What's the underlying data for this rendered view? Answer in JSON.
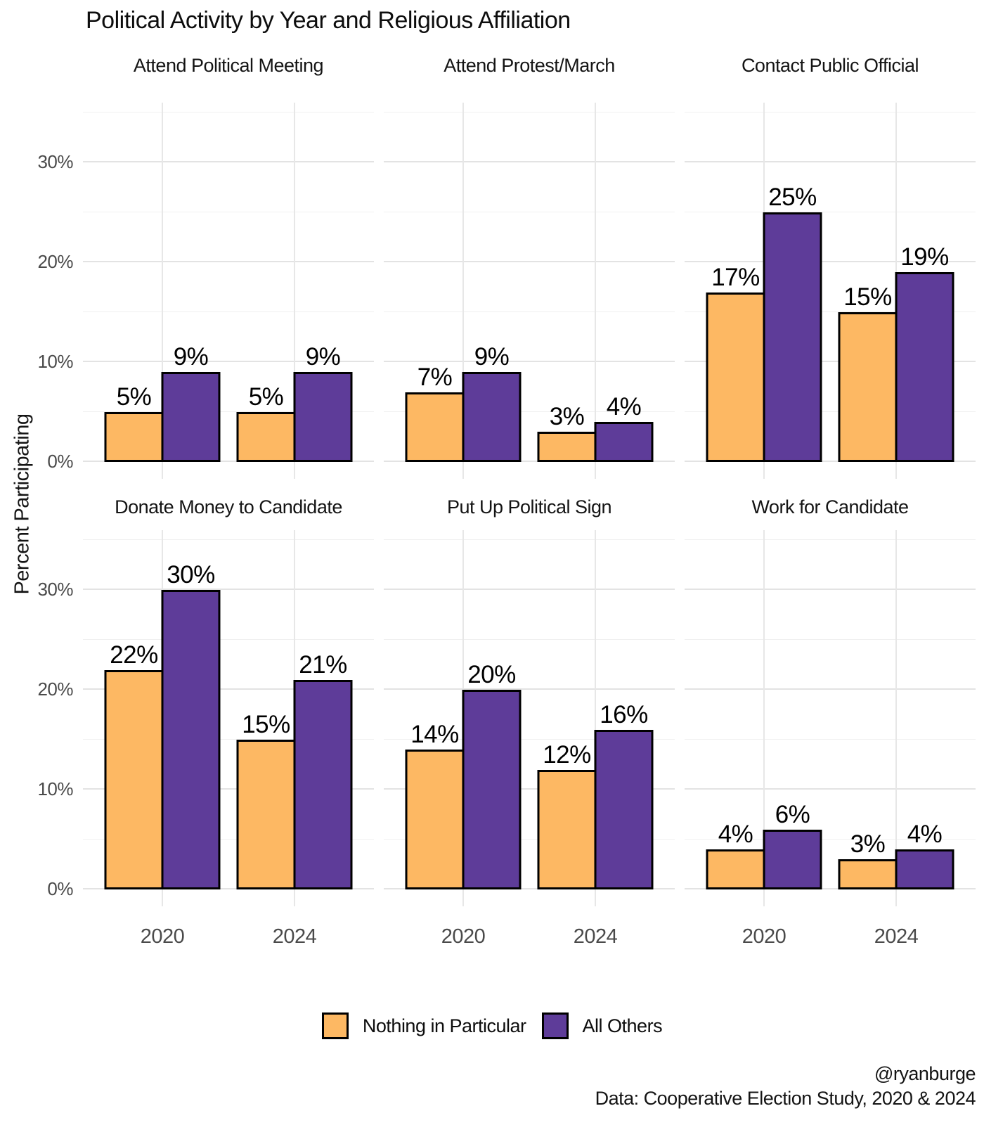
{
  "title": "Political Activity by Year and Religious Affiliation",
  "y_axis": {
    "label": "Percent Participating",
    "major_ticks": [
      {
        "value": 0,
        "label": "0%"
      },
      {
        "value": 10,
        "label": "10%"
      },
      {
        "value": 20,
        "label": "20%"
      },
      {
        "value": 30,
        "label": "30%"
      }
    ],
    "minor_ticks": [
      5,
      15,
      25,
      35
    ]
  },
  "x_axis": {
    "categories": [
      "2020",
      "2024"
    ]
  },
  "legend": {
    "items": [
      {
        "label": "Nothing in Particular",
        "color": "#FDB863"
      },
      {
        "label": "All Others",
        "color": "#5E3C99"
      }
    ]
  },
  "caption": {
    "line1": "@ryanburge",
    "line2": "Data: Cooperative Election Study, 2020 & 2024"
  },
  "colors": {
    "bar_outline": "#000000",
    "grid_major": "#e3e3e3",
    "grid_minor": "#f0f0f0",
    "axis_text": "#4a4a4a"
  },
  "chart_data": {
    "type": "bar",
    "title": "Political Activity by Year and Religious Affiliation",
    "xlabel": "",
    "ylabel": "Percent Participating",
    "unit": "%",
    "ylim": [
      0,
      35
    ],
    "grid": true,
    "legend_position": "bottom",
    "categories": [
      "2020",
      "2024"
    ],
    "series_names": [
      "Nothing in Particular",
      "All Others"
    ],
    "facets": [
      {
        "title": "Attend Political Meeting",
        "series": [
          {
            "name": "Nothing in Particular",
            "values": [
              5,
              5
            ]
          },
          {
            "name": "All Others",
            "values": [
              9,
              9
            ]
          }
        ]
      },
      {
        "title": "Attend Protest/March",
        "series": [
          {
            "name": "Nothing in Particular",
            "values": [
              7,
              3
            ]
          },
          {
            "name": "All Others",
            "values": [
              9,
              4
            ]
          }
        ]
      },
      {
        "title": "Contact Public Official",
        "series": [
          {
            "name": "Nothing in Particular",
            "values": [
              17,
              15
            ]
          },
          {
            "name": "All Others",
            "values": [
              25,
              19
            ]
          }
        ]
      },
      {
        "title": "Donate Money to Candidate",
        "series": [
          {
            "name": "Nothing in Particular",
            "values": [
              22,
              15
            ]
          },
          {
            "name": "All Others",
            "values": [
              30,
              21
            ]
          }
        ]
      },
      {
        "title": "Put Up Political Sign",
        "series": [
          {
            "name": "Nothing in Particular",
            "values": [
              14,
              12
            ]
          },
          {
            "name": "All Others",
            "values": [
              20,
              16
            ]
          }
        ]
      },
      {
        "title": "Work for Candidate",
        "series": [
          {
            "name": "Nothing in Particular",
            "values": [
              4,
              3
            ]
          },
          {
            "name": "All Others",
            "values": [
              6,
              4
            ]
          }
        ]
      }
    ]
  }
}
